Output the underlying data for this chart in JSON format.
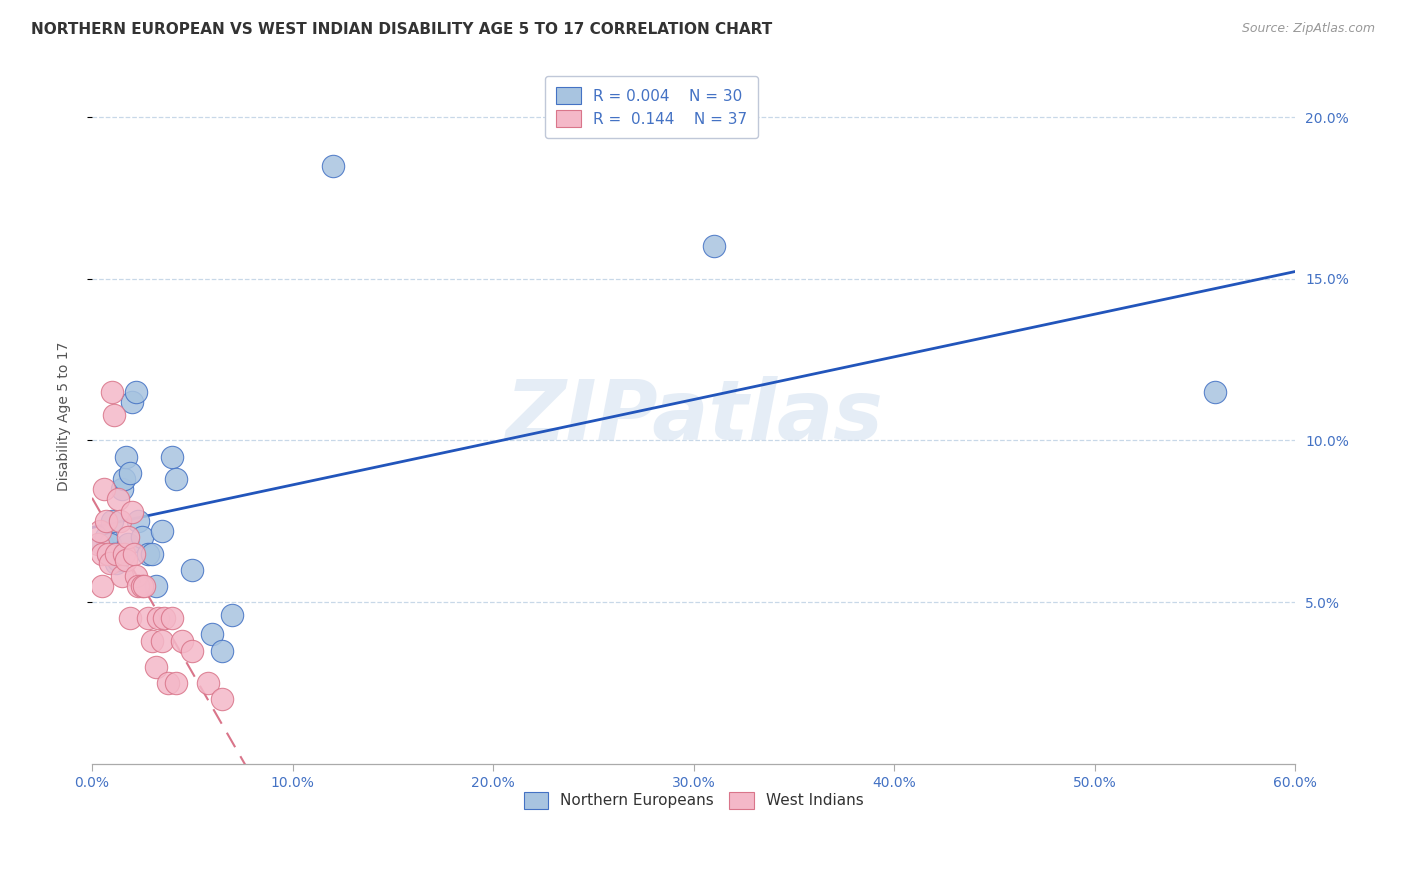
{
  "title": "NORTHERN EUROPEAN VS WEST INDIAN DISABILITY AGE 5 TO 17 CORRELATION CHART",
  "source": "Source: ZipAtlas.com",
  "ylabel": "Disability Age 5 to 17",
  "watermark": "ZIPatlas",
  "xlim": [
    0.0,
    0.6
  ],
  "ylim": [
    0.0,
    0.215
  ],
  "xticks": [
    0.0,
    0.1,
    0.2,
    0.3,
    0.4,
    0.5,
    0.6
  ],
  "yticks": [
    0.05,
    0.1,
    0.15,
    0.2
  ],
  "xtick_labels": [
    "0.0%",
    "10.0%",
    "20.0%",
    "30.0%",
    "40.0%",
    "50.0%",
    "60.0%"
  ],
  "ytick_labels_right": [
    "5.0%",
    "10.0%",
    "15.0%",
    "20.0%"
  ],
  "ne_color": "#a8c4e0",
  "wi_color": "#f4b8c8",
  "ne_edge_color": "#4472c4",
  "wi_edge_color": "#d9758a",
  "trend_ne_color": "#2255bb",
  "trend_wi_color": "#d9758a",
  "legend_r_ne": "R = 0.004",
  "legend_n_ne": "N = 30",
  "legend_r_wi": "R =  0.144",
  "legend_n_wi": "N = 37",
  "ne_x": [
    0.005,
    0.007,
    0.008,
    0.009,
    0.01,
    0.011,
    0.012,
    0.013,
    0.015,
    0.016,
    0.017,
    0.018,
    0.019,
    0.02,
    0.022,
    0.023,
    0.025,
    0.028,
    0.03,
    0.032,
    0.035,
    0.04,
    0.042,
    0.05,
    0.06,
    0.065,
    0.07,
    0.12,
    0.31,
    0.56
  ],
  "ne_y": [
    0.068,
    0.07,
    0.065,
    0.068,
    0.075,
    0.065,
    0.062,
    0.063,
    0.085,
    0.088,
    0.095,
    0.068,
    0.09,
    0.112,
    0.115,
    0.075,
    0.07,
    0.065,
    0.065,
    0.055,
    0.072,
    0.095,
    0.088,
    0.06,
    0.04,
    0.035,
    0.046,
    0.185,
    0.16,
    0.115
  ],
  "wi_x": [
    0.003,
    0.004,
    0.005,
    0.005,
    0.006,
    0.007,
    0.008,
    0.009,
    0.01,
    0.011,
    0.012,
    0.013,
    0.014,
    0.015,
    0.016,
    0.017,
    0.018,
    0.019,
    0.02,
    0.021,
    0.022,
    0.023,
    0.025,
    0.026,
    0.028,
    0.03,
    0.032,
    0.033,
    0.035,
    0.036,
    0.038,
    0.04,
    0.042,
    0.045,
    0.05,
    0.058,
    0.065
  ],
  "wi_y": [
    0.068,
    0.072,
    0.065,
    0.055,
    0.085,
    0.075,
    0.065,
    0.062,
    0.115,
    0.108,
    0.065,
    0.082,
    0.075,
    0.058,
    0.065,
    0.063,
    0.07,
    0.045,
    0.078,
    0.065,
    0.058,
    0.055,
    0.055,
    0.055,
    0.045,
    0.038,
    0.03,
    0.045,
    0.038,
    0.045,
    0.025,
    0.045,
    0.025,
    0.038,
    0.035,
    0.025,
    0.02
  ],
  "title_fontsize": 11,
  "source_fontsize": 9,
  "tick_fontsize": 10,
  "legend_fontsize": 11,
  "axis_color": "#4472c4"
}
